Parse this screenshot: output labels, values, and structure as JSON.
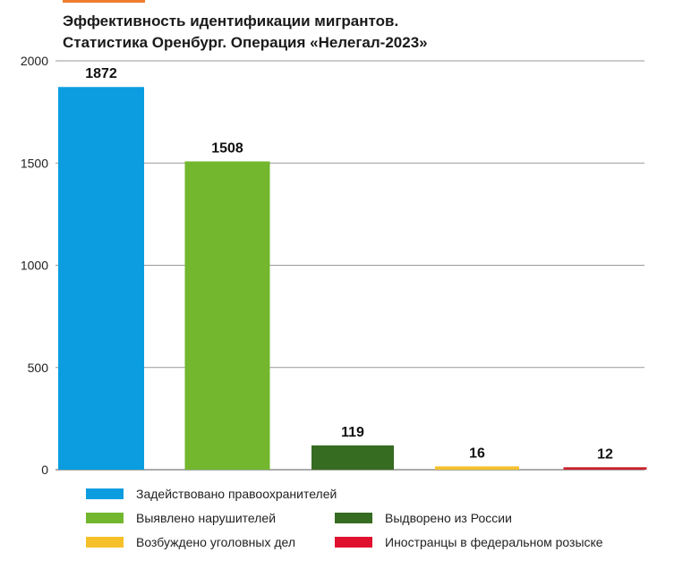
{
  "title": {
    "line1": "Эффективность идентификации мигрантов.",
    "line2": "Статистика Оренбург. Операция «Нелегал-2023»"
  },
  "chart_data": {
    "type": "bar",
    "categories": [
      "Задействовано правоохранителей",
      "Выявлено нарушителей",
      "Выдворено из России",
      "Возбуждено уголовных дел",
      "Иностранцы в федеральном розыске"
    ],
    "values": [
      1872,
      1508,
      119,
      16,
      12
    ],
    "colors": [
      "#0b9de0",
      "#72b72e",
      "#366b22",
      "#f5c02a",
      "#c8242c"
    ],
    "ylim": [
      0,
      2000
    ],
    "yticks": [
      0,
      500,
      1000,
      1500,
      2000
    ],
    "grid": true,
    "legend_position": "bottom"
  },
  "legend": [
    {
      "label": "Задействовано правоохранителей",
      "color": "#0b9de0"
    },
    {
      "label": "Выявлено нарушителей",
      "color": "#72b72e"
    },
    {
      "label": "Выдворено из России",
      "color": "#366b22"
    },
    {
      "label": "Возбуждено уголовных дел",
      "color": "#f5c02a"
    },
    {
      "label": "Иностранцы в федеральном розыске",
      "color": "#e0102f"
    }
  ]
}
